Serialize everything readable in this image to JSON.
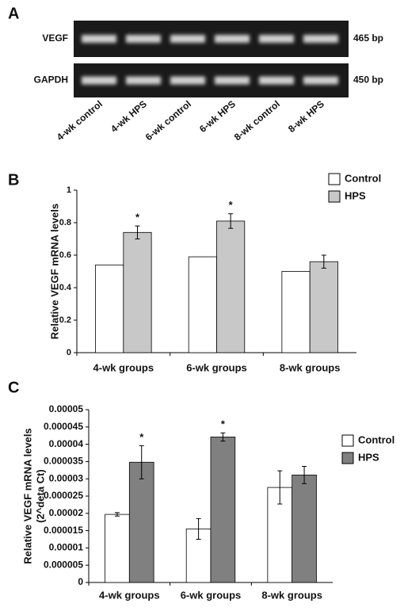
{
  "panel_a": {
    "label": "A",
    "rows": [
      {
        "name": "VEGF",
        "size": "465 bp"
      },
      {
        "name": "GAPDH",
        "size": "450 bp"
      }
    ],
    "lanes": [
      "4-wk control",
      "4-wk HPS",
      "6-wk control",
      "6-wk HPS",
      "8-wk control",
      "8-wk HPS"
    ]
  },
  "chart_data": [
    {
      "type": "bar",
      "panel_label": "B",
      "ylabel": [
        "Relative VEGF mRNA levels"
      ],
      "categories": [
        "4-wk groups",
        "6-wk groups",
        "8-wk groups"
      ],
      "series": [
        {
          "name": "Control",
          "color": "#ffffff",
          "values": [
            0.54,
            0.59,
            0.5
          ]
        },
        {
          "name": "HPS",
          "color": "#c8c8c8",
          "values": [
            0.74,
            0.81,
            0.56
          ],
          "errors": [
            0.04,
            0.045,
            0.04
          ],
          "annotations": [
            "*",
            "*",
            null
          ]
        }
      ],
      "ylim": [
        0,
        1
      ],
      "yticks": [
        0,
        0.2,
        0.4,
        0.6,
        0.8,
        1
      ]
    },
    {
      "type": "bar",
      "panel_label": "C",
      "ylabel": [
        "Relative  VEGF mRNA levels",
        "(2^deta Ct)"
      ],
      "categories": [
        "4-wk groups",
        "6-wk groups",
        "8-wk groups"
      ],
      "series": [
        {
          "name": "Control",
          "color": "#ffffff",
          "values": [
            1.97e-05,
            1.55e-05,
            2.75e-05
          ],
          "errors": [
            5e-07,
            3e-06,
            4.8e-06
          ]
        },
        {
          "name": "HPS",
          "color": "#808080",
          "values": [
            3.48e-05,
            4.21e-05,
            3.11e-05
          ],
          "errors": [
            4.8e-06,
            1.2e-06,
            2.5e-06
          ],
          "annotations": [
            "*",
            "*",
            null
          ]
        }
      ],
      "ylim": [
        0,
        5e-05
      ],
      "yticks": [
        0,
        5e-06,
        1e-05,
        1.5e-05,
        2e-05,
        2.5e-05,
        3e-05,
        3.5e-05,
        4e-05,
        4.5e-05,
        5e-05
      ]
    }
  ]
}
